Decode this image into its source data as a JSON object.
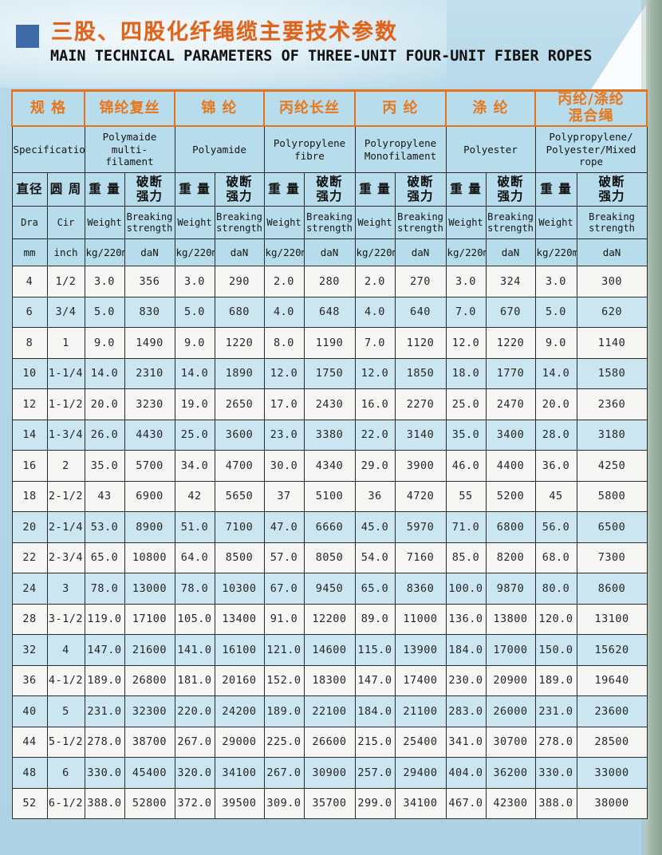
{
  "page": {
    "title_cn": "三股、四股化纤绳缆主要技术参数",
    "title_en": "MAIN TECHNICAL PARAMETERS OF THREE-UNIT FOUR-UNIT FIBER ROPES"
  },
  "colors": {
    "accent_orange": "#e4711c",
    "title_orange": "#e0631a",
    "bullet_blue": "#3c6ba6",
    "page_blue": "#b3d7e8",
    "header_cell_blue": "#b7dcec",
    "row_blue": "#cbe6f1",
    "row_white": "#f6f7f4",
    "border_dark": "#2b2b2b",
    "page_edge_green": "#9db2a3"
  },
  "table": {
    "group_headers": [
      {
        "cn": "规 格",
        "en": "Specification"
      },
      {
        "cn": "锦纶复丝",
        "en": "Polymaide multi-\nfilament"
      },
      {
        "cn": "锦 纶",
        "en": "Polyamide"
      },
      {
        "cn": "丙纶长丝",
        "en": "Polyropylene\nfibre"
      },
      {
        "cn": "丙 纶",
        "en": "Polyropylene\nMonofilament"
      },
      {
        "cn": "涤 纶",
        "en": "Polyester"
      },
      {
        "cn": "丙纶/涤纶\n混合绳",
        "en": "Polypropylene/\nPolyester/Mixed\nrope"
      }
    ],
    "sub": {
      "cn": [
        "直径",
        "圆 周",
        "重 量",
        "破断\n强力"
      ],
      "en": [
        "Dra",
        "Cir",
        "Weight",
        "Breaking\nstrength"
      ],
      "units": [
        "mm",
        "inch",
        "kg/220m",
        "daN"
      ]
    },
    "rows": [
      {
        "shade": "white",
        "cells": [
          "4",
          "1/2",
          "3.0",
          "356",
          "3.0",
          "290",
          "2.0",
          "280",
          "2.0",
          "270",
          "3.0",
          "324",
          "3.0",
          "300"
        ]
      },
      {
        "shade": "blue",
        "cells": [
          "6",
          "3/4",
          "5.0",
          "830",
          "5.0",
          "680",
          "4.0",
          "648",
          "4.0",
          "640",
          "7.0",
          "670",
          "5.0",
          "620"
        ]
      },
      {
        "shade": "white",
        "cells": [
          "8",
          "1",
          "9.0",
          "1490",
          "9.0",
          "1220",
          "8.0",
          "1190",
          "7.0",
          "1120",
          "12.0",
          "1220",
          "9.0",
          "1140"
        ]
      },
      {
        "shade": "blue",
        "cells": [
          "10",
          "1-1/4",
          "14.0",
          "2310",
          "14.0",
          "1890",
          "12.0",
          "1750",
          "12.0",
          "1850",
          "18.0",
          "1770",
          "14.0",
          "1580"
        ]
      },
      {
        "shade": "white",
        "cells": [
          "12",
          "1-1/2",
          "20.0",
          "3230",
          "19.0",
          "2650",
          "17.0",
          "2430",
          "16.0",
          "2270",
          "25.0",
          "2470",
          "20.0",
          "2360"
        ]
      },
      {
        "shade": "blue",
        "cells": [
          "14",
          "1-3/4",
          "26.0",
          "4430",
          "25.0",
          "3600",
          "23.0",
          "3380",
          "22.0",
          "3140",
          "35.0",
          "3400",
          "28.0",
          "3180"
        ]
      },
      {
        "shade": "white",
        "cells": [
          "16",
          "2",
          "35.0",
          "5700",
          "34.0",
          "4700",
          "30.0",
          "4340",
          "29.0",
          "3900",
          "46.0",
          "4400",
          "36.0",
          "4250"
        ]
      },
      {
        "shade": "white",
        "cells": [
          "18",
          "2-1/2",
          "43",
          "6900",
          "42",
          "5650",
          "37",
          "5100",
          "36",
          "4720",
          "55",
          "5200",
          "45",
          "5800"
        ]
      },
      {
        "shade": "blue",
        "cells": [
          "20",
          "2-1/4",
          "53.0",
          "8900",
          "51.0",
          "7100",
          "47.0",
          "6660",
          "45.0",
          "5970",
          "71.0",
          "6800",
          "56.0",
          "6500"
        ]
      },
      {
        "shade": "white",
        "cells": [
          "22",
          "2-3/4",
          "65.0",
          "10800",
          "64.0",
          "8500",
          "57.0",
          "8050",
          "54.0",
          "7160",
          "85.0",
          "8200",
          "68.0",
          "7300"
        ]
      },
      {
        "shade": "blue",
        "cells": [
          "24",
          "3",
          "78.0",
          "13000",
          "78.0",
          "10300",
          "67.0",
          "9450",
          "65.0",
          "8360",
          "100.0",
          "9870",
          "80.0",
          "8600"
        ]
      },
      {
        "shade": "white",
        "cells": [
          "28",
          "3-1/2",
          "119.0",
          "17100",
          "105.0",
          "13400",
          "91.0",
          "12200",
          "89.0",
          "11000",
          "136.0",
          "13800",
          "120.0",
          "13100"
        ]
      },
      {
        "shade": "blue",
        "cells": [
          "32",
          "4",
          "147.0",
          "21600",
          "141.0",
          "16100",
          "121.0",
          "14600",
          "115.0",
          "13900",
          "184.0",
          "17000",
          "150.0",
          "15620"
        ]
      },
      {
        "shade": "white",
        "cells": [
          "36",
          "4-1/2",
          "189.0",
          "26800",
          "181.0",
          "20160",
          "152.0",
          "18300",
          "147.0",
          "17400",
          "230.0",
          "20900",
          "189.0",
          "19640"
        ]
      },
      {
        "shade": "blue",
        "cells": [
          "40",
          "5",
          "231.0",
          "32300",
          "220.0",
          "24200",
          "189.0",
          "22100",
          "184.0",
          "21100",
          "283.0",
          "26000",
          "231.0",
          "23600"
        ]
      },
      {
        "shade": "white",
        "cells": [
          "44",
          "5-1/2",
          "278.0",
          "38700",
          "267.0",
          "29000",
          "225.0",
          "26600",
          "215.0",
          "25400",
          "341.0",
          "30700",
          "278.0",
          "28500"
        ]
      },
      {
        "shade": "blue",
        "cells": [
          "48",
          "6",
          "330.0",
          "45400",
          "320.0",
          "34100",
          "267.0",
          "30900",
          "257.0",
          "29400",
          "404.0",
          "36200",
          "330.0",
          "33000"
        ]
      },
      {
        "shade": "white",
        "cells": [
          "52",
          "6-1/2",
          "388.0",
          "52800",
          "372.0",
          "39500",
          "309.0",
          "35700",
          "299.0",
          "34100",
          "467.0",
          "42300",
          "388.0",
          "38000"
        ]
      }
    ]
  }
}
